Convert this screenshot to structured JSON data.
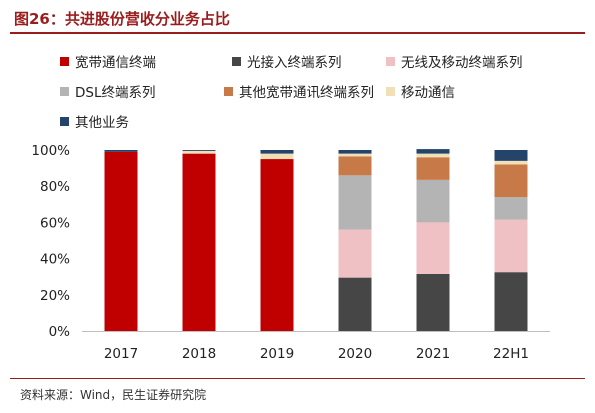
{
  "figure_title": "图26：共进股份营收分业务占比",
  "source": "资料来源：Wind，民生证券研究院",
  "chart_data": {
    "type": "bar",
    "stacked": true,
    "percent": true,
    "categories": [
      "2017",
      "2018",
      "2019",
      "2020",
      "2021",
      "22H1"
    ],
    "ylim": [
      0,
      100
    ],
    "yticks": [
      "0%",
      "20%",
      "40%",
      "60%",
      "80%",
      "100%"
    ],
    "legend_position": "top",
    "series": [
      {
        "name": "宽带通信终端",
        "color": "#c00000",
        "values": [
          99,
          98,
          95,
          0,
          0,
          0
        ]
      },
      {
        "name": "光接入终端系列",
        "color": "#464646",
        "values": [
          0,
          0,
          0,
          29.5,
          31.5,
          32.5
        ]
      },
      {
        "name": "无线及移动终端系列",
        "color": "#efc1c4",
        "values": [
          0,
          0,
          0,
          26.5,
          28.5,
          29
        ]
      },
      {
        "name": "DSL终端系列",
        "color": "#b4b4b4",
        "values": [
          0,
          0,
          0,
          30,
          23.5,
          12.5
        ]
      },
      {
        "name": "其他宽带通讯终端系列",
        "color": "#c77a48",
        "values": [
          0,
          0,
          0,
          10.5,
          12.5,
          18
        ]
      },
      {
        "name": "移动通信",
        "color": "#f1dfb6",
        "values": [
          0,
          1.5,
          3,
          1.5,
          2,
          2
        ]
      },
      {
        "name": "其他业务",
        "color": "#24446b",
        "values": [
          1,
          0.5,
          2,
          2,
          2.5,
          6
        ]
      }
    ]
  }
}
